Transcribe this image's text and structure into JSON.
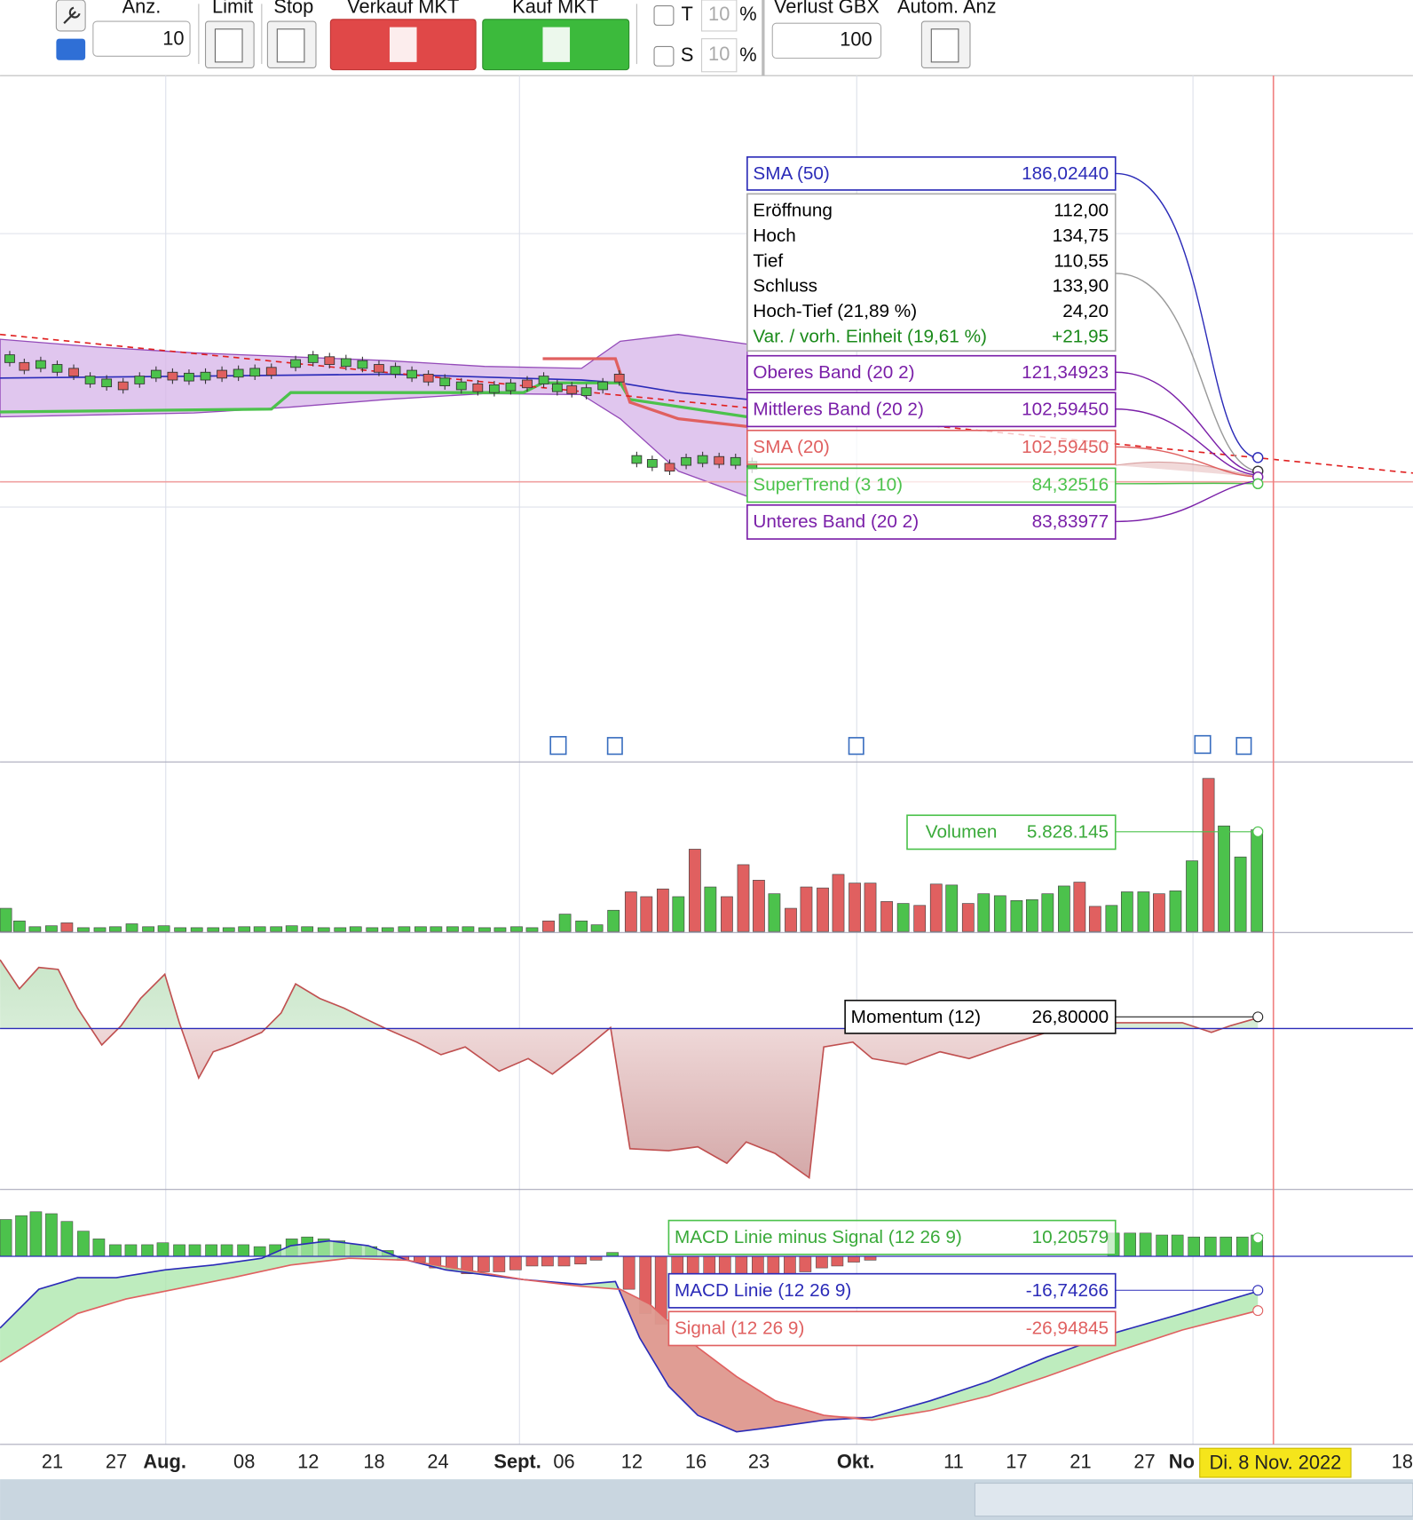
{
  "toolbar": {
    "quantity_label": "Anz.",
    "quantity": "10",
    "limit": "Limit",
    "stop": "Stop",
    "sell": "Verkauf MKT",
    "buy": "Kauf MKT",
    "t_label": "T",
    "t_value": "10",
    "t_unit": "%",
    "s_label": "S",
    "s_value": "10",
    "s_unit": "%",
    "loss_label": "Verlust GBX",
    "loss_value": "100",
    "auto_label": "Autom. Anz"
  },
  "price_panel": {
    "sma50": {
      "name": "SMA (50)",
      "value": "186,02440"
    },
    "ohlc": [
      {
        "name": "Eröffnung",
        "value": "112,00"
      },
      {
        "name": "Hoch",
        "value": "134,75"
      },
      {
        "name": "Tief",
        "value": "110,55"
      },
      {
        "name": "Schluss",
        "value": "133,90"
      },
      {
        "name": "Hoch-Tief (21,89 %)",
        "value": "24,20"
      },
      {
        "name": "Var. / vorh. Einheit (19,61 %)",
        "value": "+21,95"
      }
    ],
    "bands": [
      {
        "name": "Oberes Band (20 2)",
        "value": "121,34923"
      },
      {
        "name": "Mittleres Band (20 2)",
        "value": "102,59450"
      },
      {
        "name": "SMA (20)",
        "value": "102,59450"
      },
      {
        "name": "SuperTrend (3 10)",
        "value": "84,32516"
      },
      {
        "name": "Unteres Band (20 2)",
        "value": "83,83977"
      }
    ]
  },
  "volume_panel": {
    "name": "Volumen",
    "value": "5.828.145"
  },
  "momentum_panel": {
    "name": "Momentum (12)",
    "value": "26,80000"
  },
  "macd_panel": [
    {
      "name": "MACD Linie minus Signal (12 26 9)",
      "value": "10,20579"
    },
    {
      "name": "MACD Linie (12 26 9)",
      "value": "-16,74266"
    },
    {
      "name": "Signal (12 26 9)",
      "value": "-26,94845"
    }
  ],
  "x_axis": [
    "21",
    "27",
    "Aug.",
    "08",
    "12",
    "18",
    "24",
    "Sept.",
    "06",
    "12",
    "16",
    "23",
    "Okt.",
    "11",
    "17",
    "21",
    "27",
    "No",
    "Di. 8 Nov. 2022",
    "18"
  ]
}
